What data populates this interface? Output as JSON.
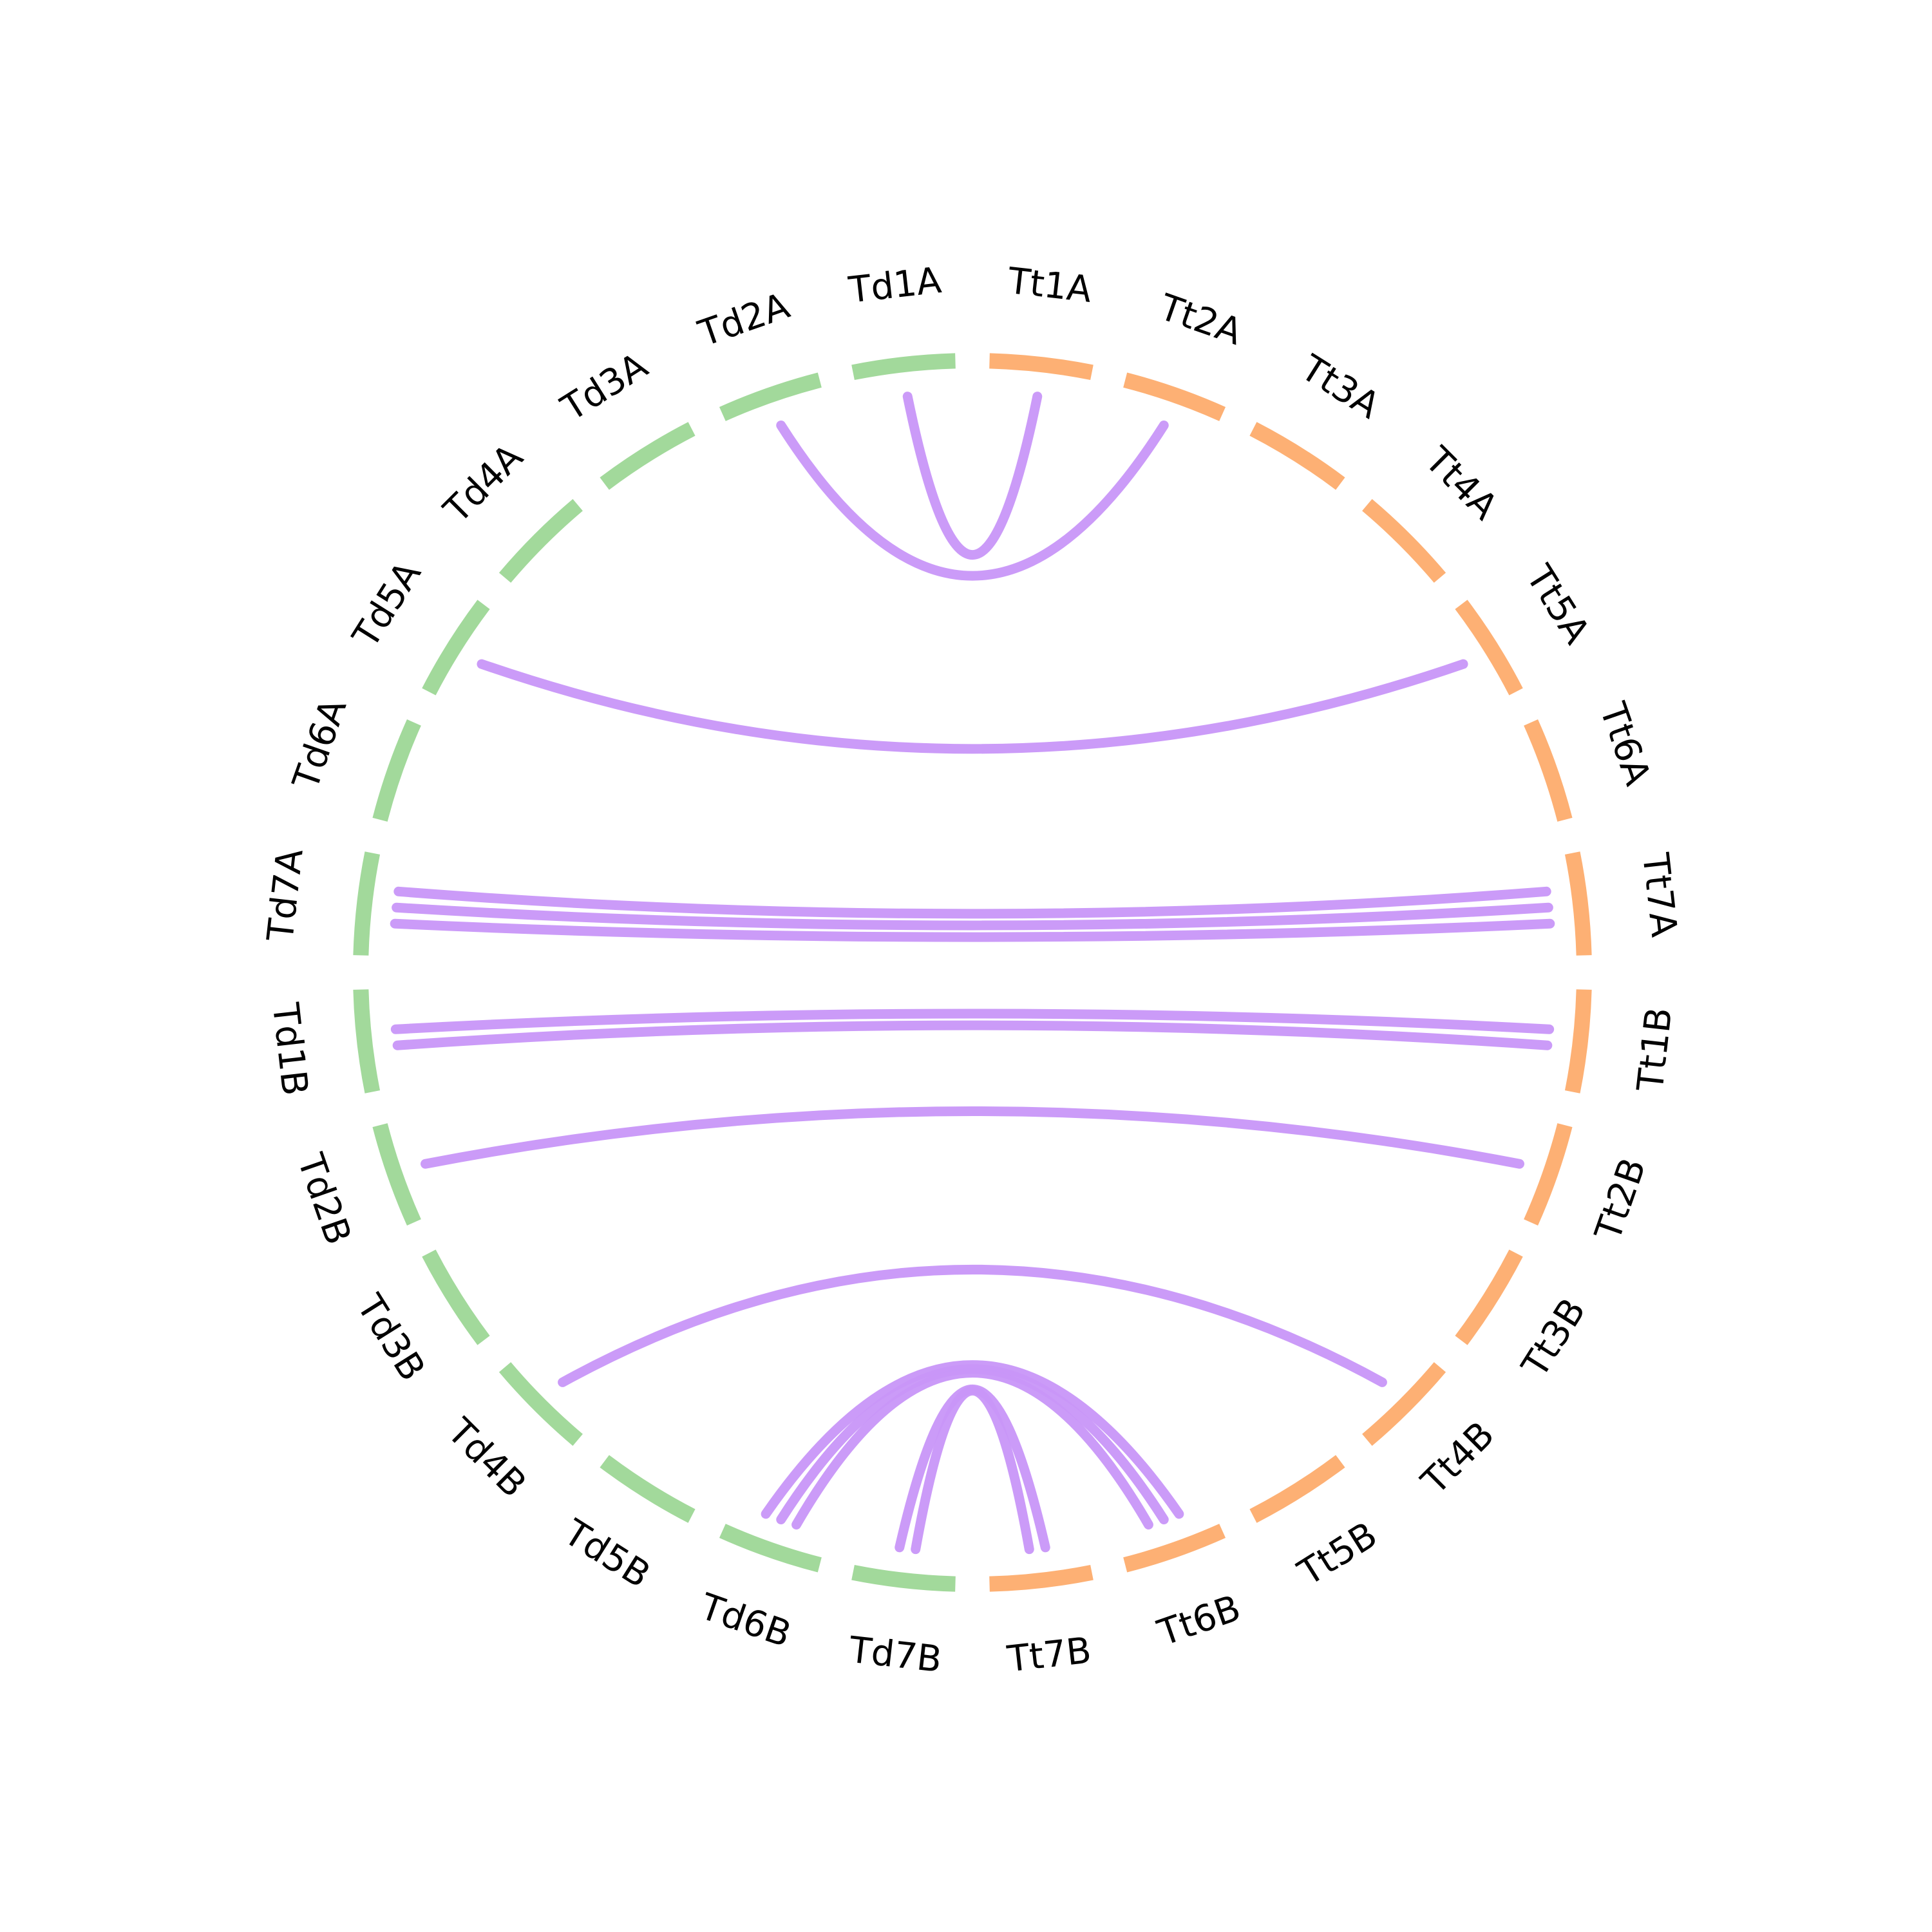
{
  "colors": {
    "td": "#a2d99b",
    "tt": "#fdb074",
    "link": "#c896f8",
    "label": "#000000"
  },
  "segments": [
    {
      "name": "Td1A",
      "group": "td"
    },
    {
      "name": "Td2A",
      "group": "td"
    },
    {
      "name": "Td3A",
      "group": "td"
    },
    {
      "name": "Td4A",
      "group": "td"
    },
    {
      "name": "Td5A",
      "group": "td"
    },
    {
      "name": "Td6A",
      "group": "td"
    },
    {
      "name": "Td7A",
      "group": "td"
    },
    {
      "name": "Td1B",
      "group": "td"
    },
    {
      "name": "Td2B",
      "group": "td"
    },
    {
      "name": "Td3B",
      "group": "td"
    },
    {
      "name": "Td4B",
      "group": "td"
    },
    {
      "name": "Td5B",
      "group": "td"
    },
    {
      "name": "Td6B",
      "group": "td"
    },
    {
      "name": "Td7B",
      "group": "td"
    },
    {
      "name": "Tt7B",
      "group": "tt"
    },
    {
      "name": "Tt6B",
      "group": "tt"
    },
    {
      "name": "Tt5B",
      "group": "tt"
    },
    {
      "name": "Tt4B",
      "group": "tt"
    },
    {
      "name": "Tt3B",
      "group": "tt"
    },
    {
      "name": "Tt2B",
      "group": "tt"
    },
    {
      "name": "Tt1B",
      "group": "tt"
    },
    {
      "name": "Tt7A",
      "group": "tt"
    },
    {
      "name": "Tt6A",
      "group": "tt"
    },
    {
      "name": "Tt5A",
      "group": "tt"
    },
    {
      "name": "Tt4A",
      "group": "tt"
    },
    {
      "name": "Tt3A",
      "group": "tt"
    },
    {
      "name": "Tt2A",
      "group": "tt"
    },
    {
      "name": "Tt1A",
      "group": "tt"
    }
  ],
  "links": [
    {
      "from": "Td2A",
      "to": "Tt2A"
    },
    {
      "from": "Td1A",
      "to": "Tt1A"
    },
    {
      "from": "Td5A",
      "to": "Tt5A"
    },
    {
      "from": "Td7A",
      "to": "Tt7A"
    },
    {
      "from": "Td7A",
      "to": "Tt7A"
    },
    {
      "from": "Td7A",
      "to": "Tt7A"
    },
    {
      "from": "Td1B",
      "to": "Tt1B"
    },
    {
      "from": "Td1B",
      "to": "Tt1B"
    },
    {
      "from": "Td2B",
      "to": "Tt2B"
    },
    {
      "from": "Td4B",
      "to": "Tt4B"
    },
    {
      "from": "Td6B",
      "to": "Tt6B"
    },
    {
      "from": "Td6B",
      "to": "Tt6B"
    },
    {
      "from": "Td6B",
      "to": "Tt6B"
    },
    {
      "from": "Td7B",
      "to": "Tt7B"
    },
    {
      "from": "Td7B",
      "to": "Tt7B"
    }
  ]
}
